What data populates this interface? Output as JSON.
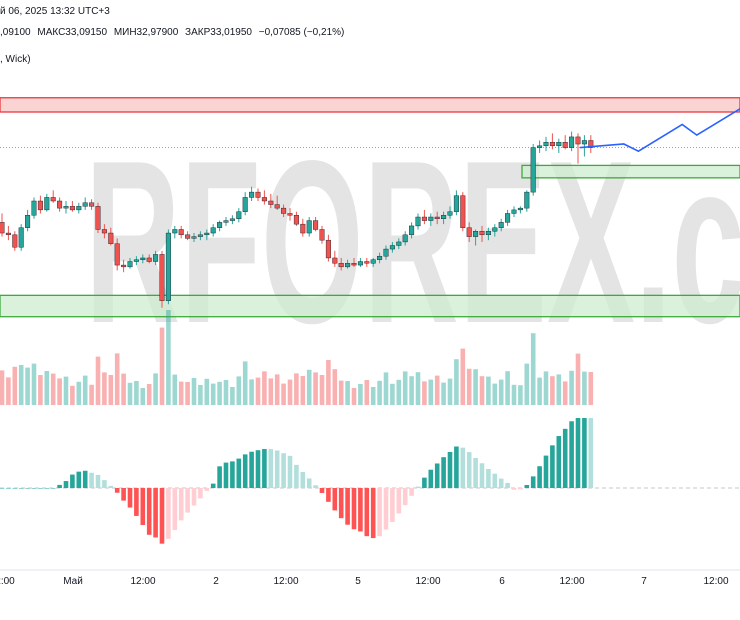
{
  "header": {
    "date_line": "й 06, 2025 13:32 UTC+3",
    "open": ",09100",
    "high": "МАКС33,09150",
    "low": "МИН32,97900",
    "close": "ЗАКР33,01950",
    "change": "−0,07085 (−0,21%)",
    "style": ", Wick)"
  },
  "watermark": "RFOREX.c",
  "colors": {
    "up": "#26a69a",
    "down": "#ef5350",
    "zone_red_fill": "#f7c5c4",
    "zone_red_border": "#e8383f",
    "zone_green_fill": "#cdeccf",
    "zone_green_border": "#3daa3d",
    "forecast": "#2962ff",
    "hist_pos_strong": "#26a69a",
    "hist_pos_weak": "#b2dfdb",
    "hist_neg_strong": "#ff5252",
    "hist_neg_weak": "#ffcdd2"
  },
  "chart_data": {
    "type": "candlestick",
    "time_labels": [
      "2:00",
      "Май",
      "12:00",
      "2",
      "12:00",
      "5",
      "12:00",
      "6",
      "12:00",
      "7",
      "12:00"
    ],
    "ylim": [
      0,
      100
    ],
    "candles": [
      {
        "o": 38,
        "h": 43,
        "l": 30,
        "c": 32
      },
      {
        "o": 32,
        "h": 36,
        "l": 28,
        "c": 31
      },
      {
        "o": 31,
        "h": 33,
        "l": 22,
        "c": 24
      },
      {
        "o": 24,
        "h": 37,
        "l": 22,
        "c": 35
      },
      {
        "o": 35,
        "h": 45,
        "l": 33,
        "c": 42
      },
      {
        "o": 42,
        "h": 52,
        "l": 40,
        "c": 50
      },
      {
        "o": 50,
        "h": 53,
        "l": 43,
        "c": 45
      },
      {
        "o": 45,
        "h": 54,
        "l": 44,
        "c": 52
      },
      {
        "o": 52,
        "h": 56,
        "l": 49,
        "c": 50
      },
      {
        "o": 50,
        "h": 52,
        "l": 44,
        "c": 46
      },
      {
        "o": 46,
        "h": 50,
        "l": 43,
        "c": 47
      },
      {
        "o": 47,
        "h": 50,
        "l": 44,
        "c": 45
      },
      {
        "o": 45,
        "h": 49,
        "l": 43,
        "c": 47
      },
      {
        "o": 47,
        "h": 52,
        "l": 45,
        "c": 49
      },
      {
        "o": 49,
        "h": 51,
        "l": 45,
        "c": 47
      },
      {
        "o": 47,
        "h": 49,
        "l": 32,
        "c": 34
      },
      {
        "o": 34,
        "h": 37,
        "l": 29,
        "c": 32
      },
      {
        "o": 32,
        "h": 35,
        "l": 25,
        "c": 26
      },
      {
        "o": 26,
        "h": 29,
        "l": 11,
        "c": 14
      },
      {
        "o": 14,
        "h": 17,
        "l": 10,
        "c": 13
      },
      {
        "o": 13,
        "h": 18,
        "l": 12,
        "c": 16
      },
      {
        "o": 16,
        "h": 19,
        "l": 14,
        "c": 17
      },
      {
        "o": 17,
        "h": 20,
        "l": 15,
        "c": 18
      },
      {
        "o": 18,
        "h": 20,
        "l": 15,
        "c": 16
      },
      {
        "o": 16,
        "h": 22,
        "l": 14,
        "c": 20
      },
      {
        "o": 20,
        "h": 22,
        "l": -10,
        "c": -6
      },
      {
        "o": -6,
        "h": 34,
        "l": -8,
        "c": 32
      },
      {
        "o": 32,
        "h": 36,
        "l": 29,
        "c": 34
      },
      {
        "o": 34,
        "h": 36,
        "l": 29,
        "c": 31
      },
      {
        "o": 31,
        "h": 33,
        "l": 28,
        "c": 29
      },
      {
        "o": 29,
        "h": 32,
        "l": 27,
        "c": 30
      },
      {
        "o": 30,
        "h": 33,
        "l": 28,
        "c": 31
      },
      {
        "o": 31,
        "h": 34,
        "l": 28,
        "c": 32
      },
      {
        "o": 32,
        "h": 37,
        "l": 30,
        "c": 35
      },
      {
        "o": 35,
        "h": 39,
        "l": 33,
        "c": 38
      },
      {
        "o": 38,
        "h": 41,
        "l": 36,
        "c": 39
      },
      {
        "o": 39,
        "h": 42,
        "l": 37,
        "c": 40
      },
      {
        "o": 40,
        "h": 46,
        "l": 38,
        "c": 44
      },
      {
        "o": 44,
        "h": 55,
        "l": 42,
        "c": 52
      },
      {
        "o": 52,
        "h": 58,
        "l": 50,
        "c": 55
      },
      {
        "o": 55,
        "h": 57,
        "l": 50,
        "c": 52
      },
      {
        "o": 52,
        "h": 56,
        "l": 48,
        "c": 50
      },
      {
        "o": 50,
        "h": 54,
        "l": 46,
        "c": 48
      },
      {
        "o": 48,
        "h": 53,
        "l": 45,
        "c": 46
      },
      {
        "o": 46,
        "h": 48,
        "l": 41,
        "c": 43
      },
      {
        "o": 43,
        "h": 46,
        "l": 39,
        "c": 42
      },
      {
        "o": 42,
        "h": 44,
        "l": 36,
        "c": 37
      },
      {
        "o": 37,
        "h": 40,
        "l": 30,
        "c": 32
      },
      {
        "o": 32,
        "h": 41,
        "l": 30,
        "c": 39
      },
      {
        "o": 39,
        "h": 41,
        "l": 33,
        "c": 34
      },
      {
        "o": 34,
        "h": 36,
        "l": 26,
        "c": 28
      },
      {
        "o": 28,
        "h": 31,
        "l": 16,
        "c": 18
      },
      {
        "o": 18,
        "h": 22,
        "l": 13,
        "c": 15
      },
      {
        "o": 15,
        "h": 18,
        "l": 11,
        "c": 13
      },
      {
        "o": 13,
        "h": 17,
        "l": 12,
        "c": 15
      },
      {
        "o": 15,
        "h": 18,
        "l": 13,
        "c": 14
      },
      {
        "o": 14,
        "h": 18,
        "l": 13,
        "c": 16
      },
      {
        "o": 16,
        "h": 18,
        "l": 13,
        "c": 15
      },
      {
        "o": 15,
        "h": 18,
        "l": 13,
        "c": 17
      },
      {
        "o": 17,
        "h": 21,
        "l": 15,
        "c": 19
      },
      {
        "o": 19,
        "h": 25,
        "l": 17,
        "c": 23
      },
      {
        "o": 23,
        "h": 27,
        "l": 21,
        "c": 25
      },
      {
        "o": 25,
        "h": 29,
        "l": 23,
        "c": 27
      },
      {
        "o": 27,
        "h": 33,
        "l": 25,
        "c": 31
      },
      {
        "o": 31,
        "h": 38,
        "l": 29,
        "c": 36
      },
      {
        "o": 36,
        "h": 43,
        "l": 34,
        "c": 41
      },
      {
        "o": 41,
        "h": 45,
        "l": 37,
        "c": 39
      },
      {
        "o": 39,
        "h": 43,
        "l": 36,
        "c": 41
      },
      {
        "o": 41,
        "h": 44,
        "l": 37,
        "c": 40
      },
      {
        "o": 40,
        "h": 44,
        "l": 37,
        "c": 42
      },
      {
        "o": 42,
        "h": 47,
        "l": 40,
        "c": 44
      },
      {
        "o": 44,
        "h": 56,
        "l": 42,
        "c": 53
      },
      {
        "o": 53,
        "h": 55,
        "l": 33,
        "c": 35
      },
      {
        "o": 35,
        "h": 38,
        "l": 27,
        "c": 30
      },
      {
        "o": 30,
        "h": 34,
        "l": 25,
        "c": 33
      },
      {
        "o": 33,
        "h": 36,
        "l": 27,
        "c": 31
      },
      {
        "o": 31,
        "h": 35,
        "l": 28,
        "c": 33
      },
      {
        "o": 33,
        "h": 37,
        "l": 30,
        "c": 35
      },
      {
        "o": 35,
        "h": 40,
        "l": 33,
        "c": 38
      },
      {
        "o": 38,
        "h": 45,
        "l": 36,
        "c": 43
      },
      {
        "o": 43,
        "h": 47,
        "l": 41,
        "c": 45
      },
      {
        "o": 45,
        "h": 47,
        "l": 43,
        "c": 46
      },
      {
        "o": 46,
        "h": 56,
        "l": 44,
        "c": 55
      },
      {
        "o": 55,
        "h": 82,
        "l": 53,
        "c": 80
      },
      {
        "o": 80,
        "h": 84,
        "l": 77,
        "c": 81
      },
      {
        "o": 81,
        "h": 86,
        "l": 78,
        "c": 83
      },
      {
        "o": 83,
        "h": 88,
        "l": 79,
        "c": 81
      },
      {
        "o": 81,
        "h": 85,
        "l": 77,
        "c": 83
      },
      {
        "o": 83,
        "h": 87,
        "l": 79,
        "c": 80
      },
      {
        "o": 80,
        "h": 89,
        "l": 78,
        "c": 86
      },
      {
        "o": 86,
        "h": 88,
        "l": 71,
        "c": 82
      },
      {
        "o": 82,
        "h": 87,
        "l": 75,
        "c": 84
      },
      {
        "o": 84,
        "h": 87,
        "l": 77,
        "c": 80
      }
    ],
    "forecast": [
      {
        "x": 0,
        "y": 80
      },
      {
        "x": 6,
        "y": 82
      },
      {
        "x": 8,
        "y": 78
      },
      {
        "x": 14,
        "y": 93
      },
      {
        "x": 16,
        "y": 87
      },
      {
        "x": 22,
        "y": 102
      }
    ],
    "zones": [
      {
        "kind": "resistance",
        "y1": 100,
        "y2": 108
      },
      {
        "kind": "support",
        "y1": 63,
        "y2": 70
      },
      {
        "kind": "support",
        "y1": -15,
        "y2": -3
      }
    ],
    "last_price_y": 80
  }
}
